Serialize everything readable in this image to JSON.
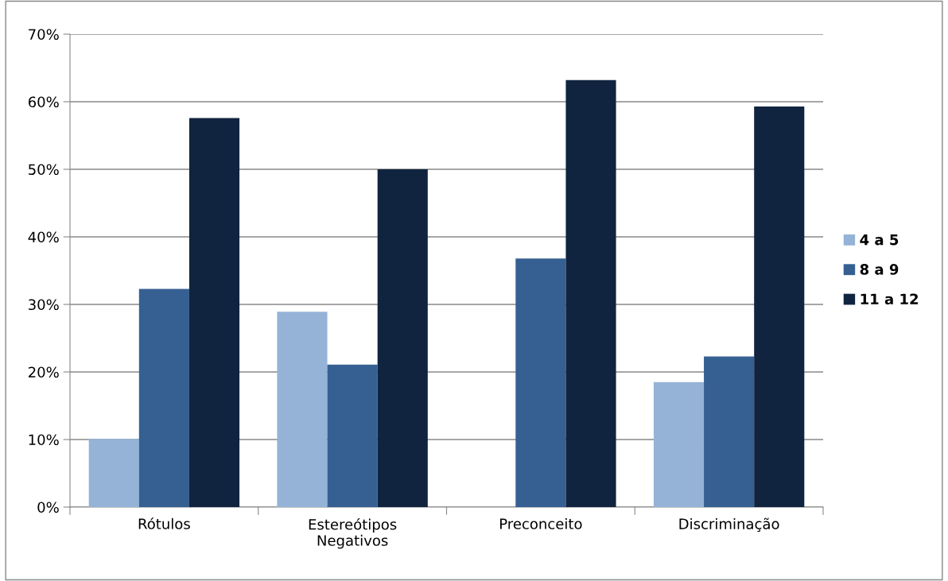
{
  "chart_data": {
    "type": "bar",
    "categories": [
      "Rótulos",
      "Estereótipos\nNegativos",
      "Preconceito",
      "Discriminação"
    ],
    "series": [
      {
        "name": "4 a 5",
        "color": "#95b3d7",
        "values": [
          10.1,
          28.9,
          0,
          18.5
        ]
      },
      {
        "name": "8 a 9",
        "color": "#366092",
        "values": [
          32.3,
          21.1,
          36.8,
          22.3
        ]
      },
      {
        "name": "11 a 12",
        "color": "#10243f",
        "values": [
          57.6,
          50.0,
          63.2,
          59.3
        ]
      }
    ],
    "ylim": [
      0,
      70
    ],
    "yticks": [
      {
        "value": 0,
        "label": "0%"
      },
      {
        "value": 10,
        "label": "10%"
      },
      {
        "value": 20,
        "label": "20%"
      },
      {
        "value": 30,
        "label": "30%"
      },
      {
        "value": 40,
        "label": "40%"
      },
      {
        "value": 50,
        "label": "50%"
      },
      {
        "value": 60,
        "label": "60%"
      },
      {
        "value": 70,
        "label": "70%"
      }
    ],
    "grid": "y",
    "legend": "right"
  }
}
